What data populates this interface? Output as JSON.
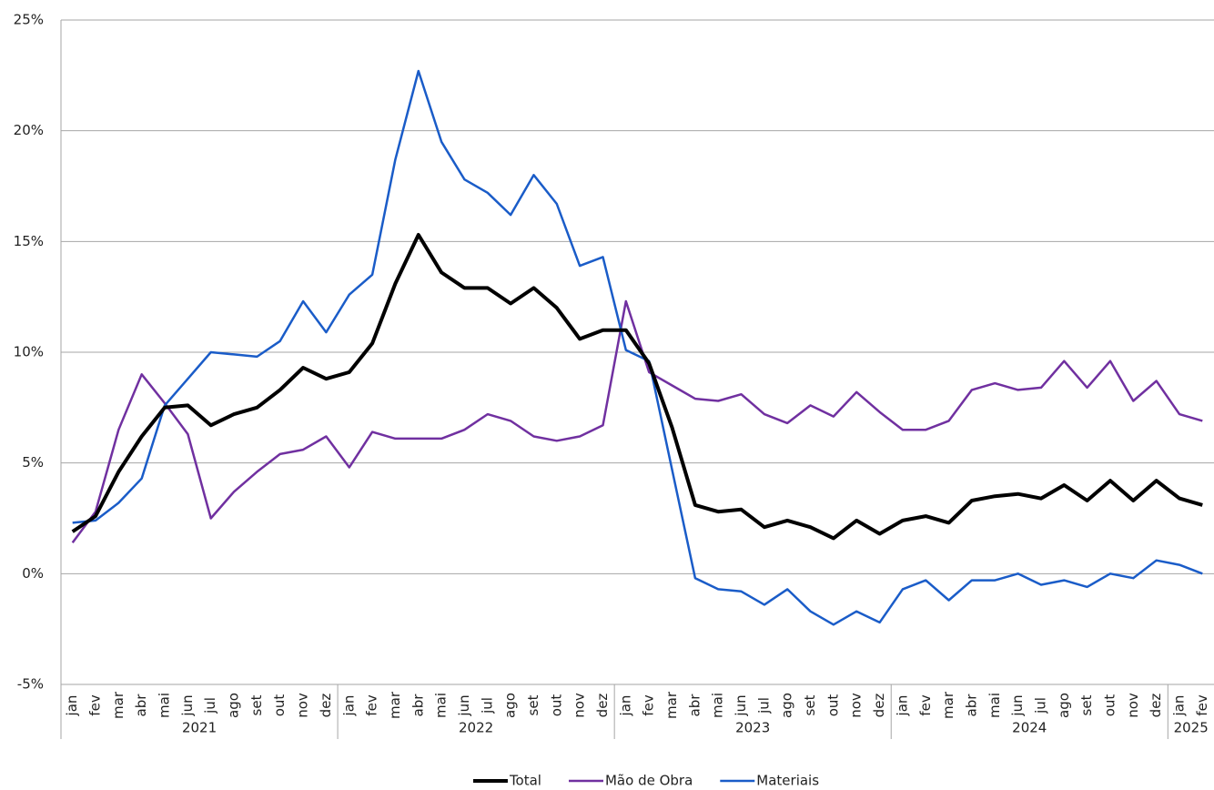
{
  "chart_data": {
    "type": "line",
    "categories": [
      "jan",
      "fev",
      "mar",
      "abr",
      "mai",
      "jun",
      "jul",
      "ago",
      "set",
      "out",
      "nov",
      "dez",
      "jan",
      "fev",
      "mar",
      "abr",
      "mai",
      "jun",
      "jul",
      "ago",
      "set",
      "out",
      "nov",
      "dez",
      "jan",
      "fev",
      "mar",
      "abr",
      "mai",
      "jun",
      "jul",
      "ago",
      "set",
      "out",
      "nov",
      "dez",
      "jan",
      "fev",
      "mar",
      "abr",
      "mai",
      "jun",
      "jul",
      "ago",
      "set",
      "out",
      "nov",
      "dez",
      "jan",
      "fev"
    ],
    "years": [
      "2021",
      "2022",
      "2023",
      "2024",
      "2025"
    ],
    "series": [
      {
        "name": "Total",
        "color": "#000000",
        "values": [
          1.9,
          2.6,
          4.6,
          6.2,
          7.5,
          7.6,
          6.7,
          7.2,
          7.5,
          8.3,
          9.3,
          8.8,
          9.1,
          10.4,
          13.1,
          15.3,
          13.6,
          12.9,
          12.9,
          12.2,
          12.9,
          12.0,
          10.6,
          11.0,
          11.0,
          9.5,
          6.6,
          3.1,
          2.8,
          2.9,
          2.1,
          2.4,
          2.1,
          1.6,
          2.4,
          1.8,
          2.4,
          2.6,
          2.3,
          3.3,
          3.5,
          3.6,
          3.4,
          4.0,
          3.3,
          4.2,
          3.3,
          4.2,
          3.4,
          3.1
        ]
      },
      {
        "name": "Mão de Obra",
        "color": "#7030a0",
        "values": [
          1.4,
          2.8,
          6.5,
          9.0,
          7.7,
          6.3,
          2.5,
          3.7,
          4.6,
          5.4,
          5.6,
          6.2,
          4.8,
          6.4,
          6.1,
          6.1,
          6.1,
          6.5,
          7.2,
          6.9,
          6.2,
          6.0,
          6.2,
          6.7,
          12.3,
          9.1,
          8.5,
          7.9,
          7.8,
          8.1,
          7.2,
          6.8,
          7.6,
          7.1,
          8.2,
          7.3,
          6.5,
          6.5,
          6.9,
          8.3,
          8.6,
          8.3,
          8.4,
          9.6,
          8.4,
          9.6,
          7.8,
          8.7,
          7.2,
          6.9
        ]
      },
      {
        "name": "Materiais",
        "color": "#1a5cc8",
        "values": [
          2.3,
          2.4,
          3.2,
          4.3,
          7.6,
          8.8,
          10.0,
          9.9,
          9.8,
          10.5,
          12.3,
          10.9,
          12.6,
          13.5,
          18.7,
          22.7,
          19.5,
          17.8,
          17.2,
          16.2,
          18.0,
          16.7,
          13.9,
          14.3,
          10.1,
          9.6,
          4.7,
          -0.2,
          -0.7,
          -0.8,
          -1.4,
          -0.7,
          -1.7,
          -2.3,
          -1.7,
          -2.2,
          -0.7,
          -0.3,
          -1.2,
          -0.3,
          -0.3,
          0.0,
          -0.5,
          -0.3,
          -0.6,
          0.0,
          -0.2,
          0.6,
          0.4,
          0.0
        ]
      }
    ],
    "ylim": [
      -5,
      25
    ],
    "yticks": [
      {
        "value": -5,
        "label": "-5%"
      },
      {
        "value": 0,
        "label": "0%"
      },
      {
        "value": 5,
        "label": "5%"
      },
      {
        "value": 10,
        "label": "10%"
      },
      {
        "value": 15,
        "label": "15%"
      },
      {
        "value": 20,
        "label": "20%"
      },
      {
        "value": 25,
        "label": "25%"
      }
    ],
    "grid": true,
    "legend": "bottom"
  }
}
